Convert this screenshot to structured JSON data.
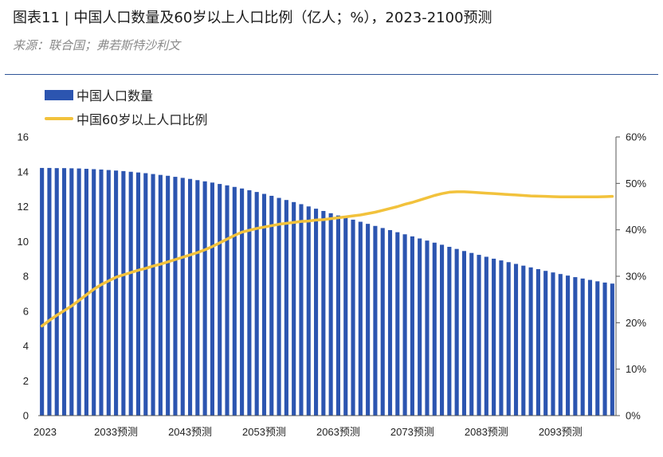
{
  "header": {
    "title": "图表11 | 中国人口数量及60岁以上人口比例（亿人；%），2023-2100预测",
    "source": "来源：联合国；弗若斯特沙利文"
  },
  "colors": {
    "bar": "#2c55b0",
    "line": "#f2c23c",
    "divider": "#2f5597",
    "axis": "#555555"
  },
  "chart_data": {
    "type": "bar",
    "x": [
      2023,
      2024,
      2025,
      2026,
      2027,
      2028,
      2029,
      2030,
      2031,
      2032,
      2033,
      2034,
      2035,
      2036,
      2037,
      2038,
      2039,
      2040,
      2041,
      2042,
      2043,
      2044,
      2045,
      2046,
      2047,
      2048,
      2049,
      2050,
      2051,
      2052,
      2053,
      2054,
      2055,
      2056,
      2057,
      2058,
      2059,
      2060,
      2061,
      2062,
      2063,
      2064,
      2065,
      2066,
      2067,
      2068,
      2069,
      2070,
      2071,
      2072,
      2073,
      2074,
      2075,
      2076,
      2077,
      2078,
      2079,
      2080,
      2081,
      2082,
      2083,
      2084,
      2085,
      2086,
      2087,
      2088,
      2089,
      2090,
      2091,
      2092,
      2093,
      2094,
      2095,
      2096,
      2097,
      2098,
      2099,
      2100
    ],
    "x_tick_labels": [
      {
        "x": 2023,
        "label": "2023"
      },
      {
        "x": 2033,
        "label": "2033预测"
      },
      {
        "x": 2043,
        "label": "2043预测"
      },
      {
        "x": 2053,
        "label": "2053预测"
      },
      {
        "x": 2063,
        "label": "2063预测"
      },
      {
        "x": 2073,
        "label": "2073预测"
      },
      {
        "x": 2083,
        "label": "2083预测"
      },
      {
        "x": 2093,
        "label": "2093预测"
      }
    ],
    "series": [
      {
        "name": "中国人口数量",
        "type": "bar",
        "axis": "left",
        "values": [
          14.22,
          14.22,
          14.21,
          14.21,
          14.2,
          14.19,
          14.17,
          14.15,
          14.13,
          14.1,
          14.07,
          14.04,
          14.0,
          13.96,
          13.92,
          13.87,
          13.82,
          13.77,
          13.71,
          13.65,
          13.59,
          13.52,
          13.45,
          13.38,
          13.3,
          13.22,
          13.13,
          13.04,
          12.94,
          12.84,
          12.73,
          12.62,
          12.5,
          12.38,
          12.26,
          12.14,
          12.01,
          11.88,
          11.75,
          11.62,
          11.49,
          11.37,
          11.25,
          11.13,
          11.01,
          10.89,
          10.77,
          10.65,
          10.53,
          10.41,
          10.29,
          10.17,
          10.05,
          9.93,
          9.81,
          9.69,
          9.57,
          9.45,
          9.34,
          9.23,
          9.12,
          9.01,
          8.91,
          8.81,
          8.71,
          8.61,
          8.51,
          8.41,
          8.31,
          8.22,
          8.13,
          8.04,
          7.95,
          7.87,
          7.79,
          7.71,
          7.64,
          7.58
        ]
      },
      {
        "name": "中国60岁以上人口比例",
        "type": "line",
        "axis": "right",
        "values": [
          19.3,
          20.5,
          21.6,
          22.6,
          23.6,
          24.8,
          26.0,
          27.2,
          28.2,
          29.0,
          29.8,
          30.3,
          30.8,
          31.3,
          31.7,
          32.2,
          32.6,
          33.1,
          33.6,
          34.1,
          34.6,
          35.1,
          35.7,
          36.4,
          37.2,
          38.0,
          38.8,
          39.5,
          39.9,
          40.3,
          40.6,
          40.9,
          41.2,
          41.4,
          41.6,
          41.8,
          41.9,
          42.1,
          42.2,
          42.4,
          42.6,
          42.8,
          43.0,
          43.2,
          43.5,
          43.8,
          44.2,
          44.6,
          45.0,
          45.5,
          45.9,
          46.4,
          46.9,
          47.4,
          47.8,
          48.1,
          48.2,
          48.2,
          48.1,
          48.0,
          47.9,
          47.8,
          47.7,
          47.6,
          47.5,
          47.4,
          47.3,
          47.25,
          47.2,
          47.15,
          47.1,
          47.1,
          47.1,
          47.1,
          47.1,
          47.1,
          47.15,
          47.2
        ]
      }
    ],
    "y_left": {
      "min": 0,
      "max": 16,
      "ticks": [
        "0",
        "2",
        "4",
        "6",
        "8",
        "10",
        "12",
        "14",
        "16"
      ]
    },
    "y_right": {
      "min": 0,
      "max": 60,
      "ticks": [
        "0%",
        "10%",
        "20%",
        "30%",
        "40%",
        "50%",
        "60%"
      ]
    },
    "legend": {
      "placement": "top-left"
    },
    "grid": false
  }
}
